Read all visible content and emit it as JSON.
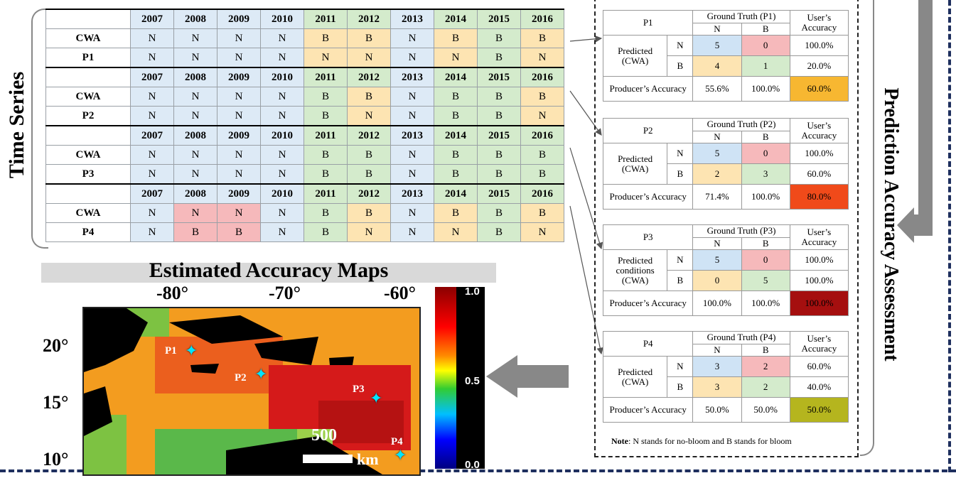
{
  "titles": {
    "time_series": "Time Series",
    "prediction": "Prediction Accuracy Assessment",
    "maps": "Estimated Accuracy Maps"
  },
  "years": [
    "2007",
    "2008",
    "2009",
    "2010",
    "2011",
    "2012",
    "2013",
    "2014",
    "2015",
    "2016"
  ],
  "time_series": [
    {
      "id": "P1",
      "cwa": [
        "N",
        "N",
        "N",
        "N",
        "B",
        "B",
        "N",
        "B",
        "B",
        "B"
      ],
      "pred": [
        "N",
        "N",
        "N",
        "N",
        "N",
        "N",
        "N",
        "N",
        "B",
        "N"
      ]
    },
    {
      "id": "P2",
      "cwa": [
        "N",
        "N",
        "N",
        "N",
        "B",
        "B",
        "N",
        "B",
        "B",
        "B"
      ],
      "pred": [
        "N",
        "N",
        "N",
        "N",
        "B",
        "N",
        "N",
        "B",
        "B",
        "N"
      ]
    },
    {
      "id": "P3",
      "cwa": [
        "N",
        "N",
        "N",
        "N",
        "B",
        "B",
        "N",
        "B",
        "B",
        "B"
      ],
      "pred": [
        "N",
        "N",
        "N",
        "N",
        "B",
        "B",
        "N",
        "B",
        "B",
        "B"
      ]
    },
    {
      "id": "P4",
      "cwa": [
        "N",
        "N",
        "N",
        "N",
        "B",
        "B",
        "N",
        "B",
        "B",
        "B"
      ],
      "pred": [
        "N",
        "B",
        "B",
        "N",
        "B",
        "N",
        "N",
        "N",
        "B",
        "N"
      ]
    }
  ],
  "row_label_cwa": "CWA",
  "confusion": [
    {
      "id": "P1",
      "gt": "Ground Truth (P1)",
      "pred_label": "Predicted (CWA)",
      "nn": "5",
      "nb": "0",
      "bn": "4",
      "bb": "1",
      "ua_n": "100.0%",
      "ua_b": "20.0%",
      "pa_n": "55.6%",
      "pa_b": "100.0%",
      "overall": "60.0%",
      "overall_color": "#f7b731"
    },
    {
      "id": "P2",
      "gt": "Ground Truth (P2)",
      "pred_label": "Predicted (CWA)",
      "nn": "5",
      "nb": "0",
      "bn": "2",
      "bb": "3",
      "ua_n": "100.0%",
      "ua_b": "60.0%",
      "pa_n": "71.4%",
      "pa_b": "100.0%",
      "overall": "80.0%",
      "overall_color": "#f04a1a"
    },
    {
      "id": "P3",
      "gt": "Ground Truth (P3)",
      "pred_label": "Predicted conditions (CWA)",
      "nn": "5",
      "nb": "0",
      "bn": "0",
      "bb": "5",
      "ua_n": "100.0%",
      "ua_b": "100.0%",
      "pa_n": "100.0%",
      "pa_b": "100.0%",
      "overall": "100.0%",
      "overall_color": "#a50f0f"
    },
    {
      "id": "P4",
      "gt": "Ground Truth (P4)",
      "pred_label": "Predicted (CWA)",
      "nn": "3",
      "nb": "2",
      "bn": "3",
      "bb": "2",
      "ua_n": "60.0%",
      "ua_b": "40.0%",
      "pa_n": "50.0%",
      "pa_b": "50.0%",
      "overall": "50.0%",
      "overall_color": "#b5b51e"
    }
  ],
  "cm_labels": {
    "n": "N",
    "b": "B",
    "users": "User’s Accuracy",
    "producers": "Producer’s Accuracy"
  },
  "note": {
    "prefix": "Note",
    "text": ": N stands for no-bloom and B stands for bloom"
  },
  "map": {
    "lon_ticks": [
      "-80°",
      "-70°",
      "-60°"
    ],
    "lat_ticks": [
      "20°",
      "15°",
      "10°"
    ],
    "points": [
      "P1",
      "P2",
      "P3",
      "P4"
    ],
    "scale_value": "500",
    "scale_unit": "km",
    "colorbar": [
      "1.0",
      "0.5",
      "0.0"
    ]
  }
}
